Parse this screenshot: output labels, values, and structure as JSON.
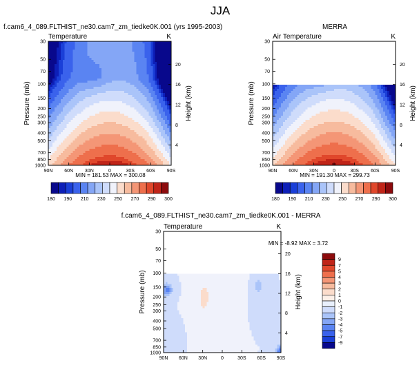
{
  "figure": {
    "title": "JJA",
    "colors": {
      "background": "#ffffff",
      "frame": "#000000",
      "missing": "#ffffff"
    }
  },
  "chart_data": [
    {
      "id": "model",
      "type": "heatmap",
      "title": "f.cam6_4_089.FLTHIST_ne30.cam7_zm_tiedke0K.001 (yrs 1995-2003)",
      "left_label": "Temperature",
      "right_label": "K",
      "xlabel": "",
      "ylabel": "Pressure (mb)",
      "y2label": "Height (km)",
      "x_ticks": [
        "90N",
        "60N",
        "30N",
        "0",
        "30S",
        "60S",
        "90S"
      ],
      "y_ticks": [
        30,
        50,
        70,
        100,
        150,
        200,
        250,
        300,
        400,
        500,
        700,
        850,
        1000
      ],
      "y2_ticks": [
        4,
        8,
        12,
        16,
        20
      ],
      "stats": "MIN = 181.53  MAX = 300.08",
      "min": 181.53,
      "max": 300.08,
      "data_top_mb": 30
    },
    {
      "id": "obs",
      "type": "heatmap",
      "title": "MERRA",
      "left_label": "Air Temperature",
      "right_label": "K",
      "xlabel": "",
      "ylabel": "Pressure (mb)",
      "y2label": "Height (km)",
      "x_ticks": [
        "90N",
        "60N",
        "30N",
        "0",
        "30S",
        "60S",
        "90S"
      ],
      "y_ticks": [
        30,
        50,
        70,
        100,
        150,
        200,
        250,
        300,
        400,
        500,
        700,
        850,
        1000
      ],
      "y2_ticks": [
        4,
        8,
        12,
        16,
        20
      ],
      "stats": "MIN = 191.30  MAX = 299.73",
      "min": 191.3,
      "max": 299.73,
      "data_top_mb": 100
    },
    {
      "id": "diff",
      "type": "heatmap",
      "title": "f.cam6_4_089.FLTHIST_ne30.cam7_zm_tiedke0K.001 - MERRA",
      "left_label": "Temperature",
      "right_label": "K",
      "xlabel": "",
      "ylabel": "Pressure (mb)",
      "y2label": "Height (km)",
      "x_ticks": [
        "90N",
        "60N",
        "30N",
        "0",
        "30S",
        "60S",
        "90S"
      ],
      "y_ticks": [
        30,
        50,
        70,
        100,
        150,
        200,
        250,
        300,
        400,
        500,
        700,
        850,
        1000
      ],
      "y2_ticks": [
        4,
        8,
        12,
        16,
        20
      ],
      "stats": "MIN =  -8.92  MAX =   3.72",
      "min": -8.92,
      "max": 3.72,
      "data_top_mb": 100
    }
  ],
  "colorbars": {
    "temperature": {
      "labels": [
        "180",
        "190",
        "210",
        "230",
        "250",
        "270",
        "290",
        "300"
      ],
      "levels": [
        180,
        185,
        190,
        200,
        210,
        220,
        230,
        240,
        250,
        260,
        270,
        280,
        290,
        295,
        300
      ],
      "colors": [
        "#08088c",
        "#0d1fb8",
        "#1a3fd8",
        "#3a62ec",
        "#5a84f2",
        "#84a6f6",
        "#aac4f9",
        "#cfdcfb",
        "#f0f2fb",
        "#fbdccb",
        "#f7bb9e",
        "#f49676",
        "#ee6f4c",
        "#e0472b",
        "#c02418",
        "#8c0a0c"
      ]
    },
    "difference": {
      "labels": [
        "9",
        "7",
        "5",
        "4",
        "3",
        "2",
        "1",
        "0",
        "-1",
        "-2",
        "-3",
        "-4",
        "-5",
        "-7",
        "-9"
      ],
      "colors": [
        "#8c0a0c",
        "#c02418",
        "#e0472b",
        "#ee6f4c",
        "#f49676",
        "#f7bb9e",
        "#fbdccb",
        "#fdf0e8",
        "#e9f0fc",
        "#cfdcfb",
        "#aac4f9",
        "#84a6f6",
        "#5a84f2",
        "#3a62ec",
        "#1a3fd8",
        "#08088c"
      ]
    }
  }
}
